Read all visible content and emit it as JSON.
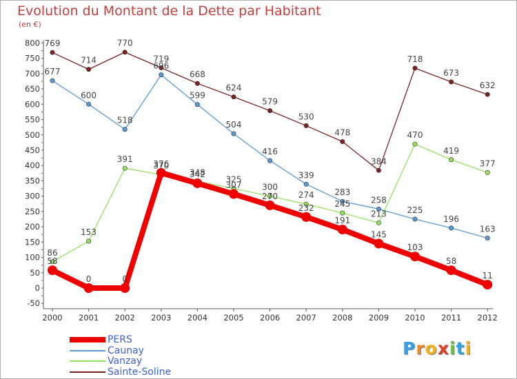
{
  "title": "Evolution du Montant de la Dette par Habitant",
  "unit": "(en €)",
  "chart_data": {
    "type": "line",
    "title": "Evolution du Montant de la Dette par Habitant",
    "subtitle": "(en €)",
    "x": [
      "2000",
      "2001",
      "2002",
      "2003",
      "2004",
      "2005",
      "2006",
      "2007",
      "2008",
      "2009",
      "2010",
      "2011",
      "2012"
    ],
    "yticks": [
      -50,
      0,
      50,
      100,
      150,
      200,
      250,
      300,
      350,
      400,
      450,
      500,
      550,
      600,
      650,
      700,
      750,
      800
    ],
    "ylim": [
      -50,
      800
    ],
    "grid": false,
    "legend_position": "bottom-left",
    "series": [
      {
        "name": "PERS",
        "color": "#ee0000",
        "width": 8,
        "marker": 7,
        "values": [
          58,
          0,
          0,
          376,
          342,
          307,
          270,
          232,
          191,
          145,
          103,
          58,
          11
        ]
      },
      {
        "name": "Caunay",
        "color": "#5a9ad4",
        "width": 1.3,
        "marker": 3.2,
        "values": [
          677,
          600,
          518,
          696,
          599,
          504,
          416,
          339,
          283,
          258,
          225,
          196,
          163
        ]
      },
      {
        "name": "Vanzay",
        "color": "#96e060",
        "width": 1.3,
        "marker": 3.2,
        "values": [
          86,
          153,
          391,
          370,
          348,
          325,
          300,
          274,
          245,
          213,
          470,
          419,
          377
        ]
      },
      {
        "name": "Sainte-Soline",
        "color": "#7a2222",
        "width": 1.3,
        "marker": 3.2,
        "values": [
          769,
          714,
          770,
          719,
          668,
          624,
          579,
          530,
          478,
          384,
          718,
          673,
          632
        ]
      }
    ]
  },
  "logo": {
    "letters": [
      "P",
      "r",
      "o",
      "x",
      "i",
      "t",
      "i"
    ],
    "colors": [
      "#3aa0e0",
      "#f08a20",
      "#f0b020",
      "#e0402a",
      "#6ac040",
      "#3aa0e0",
      "#f0b020"
    ]
  }
}
